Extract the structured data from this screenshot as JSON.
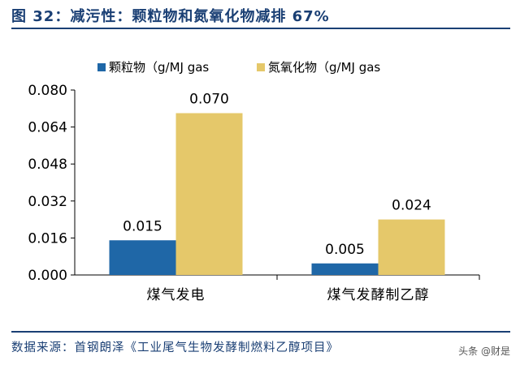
{
  "title": "图 32：减污性：颗粒物和氮氧化物减排 67%",
  "source": "数据来源：首钢朗泽《工业尾气生物发酵制燃料乙醇项目》",
  "watermark": "头条 @财是",
  "colors": {
    "brand": "#1a3f74",
    "series1": "#1f67a7",
    "series2": "#e5c86a"
  },
  "chart_data": {
    "type": "bar",
    "categories": [
      "煤气发电",
      "煤气发酵制乙醇"
    ],
    "series": [
      {
        "name": "颗粒物（g/MJ gas",
        "values": [
          0.015,
          0.005
        ],
        "labels": [
          "0.015",
          "0.005"
        ]
      },
      {
        "name": "氮氧化物（g/MJ gas",
        "values": [
          0.07,
          0.024
        ],
        "labels": [
          "0.070",
          "0.024"
        ]
      }
    ],
    "ylim": [
      0,
      0.08
    ],
    "yticks": [
      "0.000",
      "0.016",
      "0.032",
      "0.048",
      "0.064",
      "0.080"
    ],
    "legend": "top"
  }
}
